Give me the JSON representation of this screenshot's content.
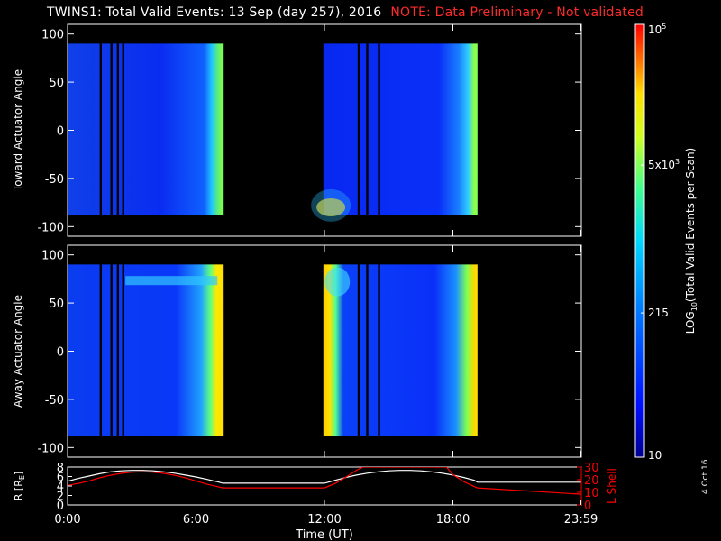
{
  "header": {
    "title": "TWINS1: Total Valid Events: 13 Sep (day 257), 2016",
    "note": "NOTE: Data Preliminary - Not validated",
    "note_color": "#ff2a2a"
  },
  "date_stamp": "4 Oct 16",
  "chart_data": [
    {
      "type": "heatmap",
      "ylabel": "Toward Actuator Angle",
      "ylim": [
        -110,
        110
      ],
      "yticks": [
        100,
        50,
        0,
        -50,
        -100
      ],
      "xlim": [
        0,
        24
      ],
      "data_coverage_hours": [
        [
          0.0,
          7.25
        ],
        [
          11.95,
          19.15
        ]
      ],
      "data_gaps_hours": [
        [
          1.5,
          1.6
        ],
        [
          2.0,
          2.1
        ],
        [
          2.3,
          2.4
        ],
        [
          2.55,
          2.65
        ],
        [
          13.55,
          13.65
        ],
        [
          13.95,
          14.05
        ],
        [
          14.5,
          14.6
        ]
      ],
      "angle_range_deg": [
        -88,
        90
      ],
      "colorscale": "log10",
      "background_level": "blue",
      "notes": [
        "green/yellow band at end of each coverage interval",
        "enhanced counts near -85 deg at 12:00-13:00"
      ]
    },
    {
      "type": "heatmap",
      "ylabel": "Away Actuator Angle",
      "ylim": [
        -110,
        110
      ],
      "yticks": [
        100,
        50,
        0,
        -50,
        -100
      ],
      "xlim": [
        0,
        24
      ],
      "data_coverage_hours": [
        [
          0.0,
          7.25
        ],
        [
          11.95,
          19.15
        ]
      ],
      "data_gaps_hours": [
        [
          1.5,
          1.6
        ],
        [
          2.0,
          2.1
        ],
        [
          2.3,
          2.4
        ],
        [
          2.55,
          2.65
        ],
        [
          13.55,
          13.65
        ],
        [
          13.95,
          14.05
        ],
        [
          14.5,
          14.6
        ]
      ],
      "angle_range_deg": [
        -88,
        90
      ],
      "colorscale": "log10",
      "background_level": "blue",
      "notes": [
        "yellow band at end of first interval and start of second",
        "enhanced band near +75 deg after 02:00"
      ]
    },
    {
      "type": "line",
      "ylabel_left": "R [R",
      "ylabel_left_sub": "E",
      "ylabel_left_close": "]",
      "ylabel_right": "L Shell",
      "xlabel": "Time (UT)",
      "x_tick_labels": [
        "0:00",
        "6:00",
        "12:00",
        "18:00",
        "23:59"
      ],
      "x_tick_hours": [
        0,
        6,
        12,
        18,
        23.98
      ],
      "left_yticks": [
        0,
        2,
        4,
        6,
        8
      ],
      "left_ylim": [
        0,
        8
      ],
      "right_yticks": [
        0,
        10,
        20,
        30
      ],
      "right_ylim": [
        0,
        30
      ],
      "series": [
        {
          "axis": "left",
          "color": "#ffffff",
          "x": [
            0,
            0.5,
            1,
            1.5,
            2,
            2.5,
            3,
            3.5,
            4,
            4.5,
            5,
            5.5,
            6,
            6.5,
            7,
            7.25,
            12,
            12.5,
            13,
            13.5,
            14,
            14.5,
            15,
            15.5,
            16,
            16.5,
            17,
            17.5,
            18,
            18.5,
            19,
            19.15,
            24
          ],
          "y": [
            5.0,
            5.6,
            6.1,
            6.6,
            7.0,
            7.2,
            7.3,
            7.3,
            7.2,
            7.0,
            6.7,
            6.3,
            5.9,
            5.4,
            4.9,
            4.6,
            4.6,
            5.2,
            5.8,
            6.3,
            6.7,
            7.0,
            7.2,
            7.3,
            7.3,
            7.2,
            7.0,
            6.7,
            6.3,
            5.8,
            5.2,
            4.8,
            4.8
          ]
        },
        {
          "axis": "right",
          "color": "#ff0000",
          "x": [
            0,
            0.5,
            1,
            1.5,
            2,
            2.5,
            3,
            3.5,
            4,
            4.5,
            5,
            5.5,
            6,
            6.5,
            7,
            7.25,
            12,
            12.5,
            13,
            13.5,
            13.8,
            17.7,
            18,
            18.5,
            19,
            19.15,
            24
          ],
          "y": [
            15.5,
            17,
            19,
            21.5,
            23.5,
            25,
            26,
            26.2,
            26,
            25,
            23.5,
            21.5,
            19,
            16.5,
            14.5,
            13.5,
            13.5,
            17,
            22,
            27.5,
            30,
            30,
            24,
            18.5,
            14.5,
            13.5,
            8.5
          ]
        }
      ]
    }
  ],
  "colorbar": {
    "label": "LOG",
    "label_sub": "10",
    "label_rest": "(Total Valid Events per Scan)",
    "ticks": [
      {
        "base": "10",
        "exp": "5",
        "value": 100000
      },
      {
        "base": "5x10",
        "exp": "3",
        "value": 5000
      },
      {
        "base": "215",
        "exp": "",
        "value": 215
      },
      {
        "base": "10",
        "exp": "",
        "value": 10
      }
    ],
    "range": [
      10,
      100000
    ]
  }
}
